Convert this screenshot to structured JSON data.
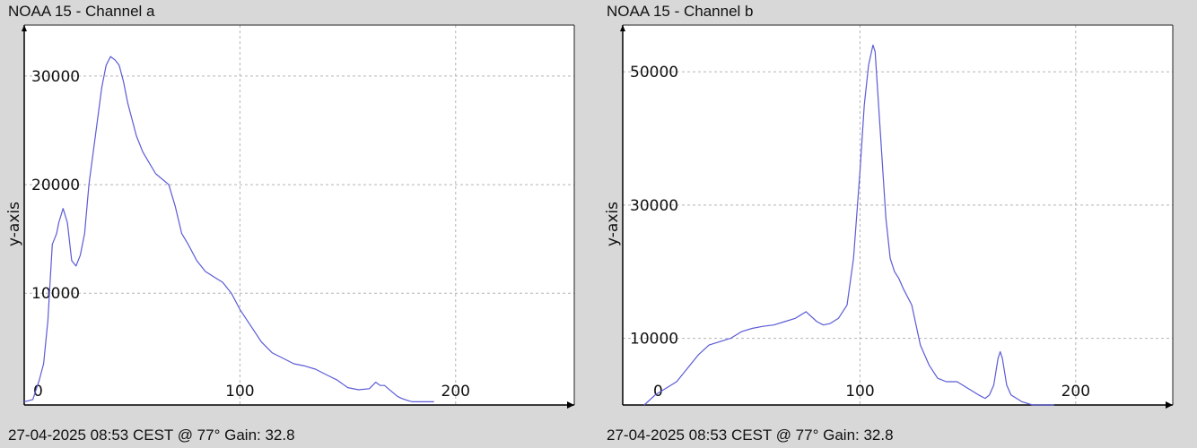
{
  "chart_data": [
    {
      "type": "line",
      "title": "NOAA 15 - Channel a",
      "footer": "27-04-2025 08:53 CEST @ 77° Gain: 32.8",
      "xlabel": "",
      "ylabel": "y-axis",
      "xlim": [
        0,
        255
      ],
      "ylim": [
        -300,
        34700
      ],
      "xticks": [
        0,
        100,
        200
      ],
      "yticks": [
        10000,
        20000,
        30000
      ],
      "grid": true,
      "line_color": "#5b5bd6",
      "series": [
        {
          "x": [
            0,
            4,
            7,
            9,
            11,
            12,
            13,
            14,
            15,
            16,
            18,
            20,
            22,
            24,
            26,
            28,
            30,
            33,
            36,
            38,
            40,
            42,
            44,
            46,
            48,
            50,
            52,
            55,
            58,
            61,
            64,
            67,
            70,
            73,
            76,
            80,
            84,
            88,
            92,
            96,
            100,
            105,
            110,
            115,
            120,
            125,
            130,
            135,
            140,
            145,
            150,
            155,
            160,
            163,
            165,
            167,
            170,
            173,
            175,
            178,
            180,
            185,
            190
          ],
          "y": [
            0,
            200,
            2000,
            3500,
            7500,
            11000,
            14500,
            15000,
            15500,
            16500,
            17800,
            16500,
            13000,
            12500,
            13500,
            15500,
            20000,
            24500,
            29000,
            31000,
            31800,
            31500,
            31000,
            29500,
            27500,
            26000,
            24500,
            23000,
            22000,
            21000,
            20500,
            20000,
            18000,
            15500,
            14500,
            13000,
            12000,
            11500,
            11000,
            10000,
            8500,
            7000,
            5500,
            4500,
            4000,
            3500,
            3300,
            3000,
            2500,
            2000,
            1300,
            1100,
            1200,
            1800,
            1500,
            1500,
            1000,
            500,
            300,
            100,
            0,
            0,
            0
          ]
        }
      ]
    },
    {
      "type": "line",
      "title": "NOAA 15 - Channel b",
      "footer": "27-04-2025 08:53 CEST @ 77° Gain: 32.8",
      "xlabel": "",
      "ylabel": "y-axis",
      "xlim": [
        -10,
        245
      ],
      "ylim": [
        0,
        57000
      ],
      "xticks": [
        0,
        100,
        200
      ],
      "yticks": [
        10000,
        30000,
        50000
      ],
      "grid": true,
      "line_color": "#5b5bd6",
      "series": [
        {
          "x": [
            0,
            5,
            10,
            15,
            20,
            25,
            30,
            35,
            40,
            45,
            50,
            55,
            60,
            65,
            70,
            75,
            80,
            83,
            86,
            90,
            94,
            97,
            100,
            102,
            104,
            106,
            107,
            108,
            110,
            112,
            114,
            116,
            118,
            120,
            124,
            128,
            132,
            136,
            140,
            145,
            150,
            155,
            158,
            160,
            162,
            164,
            165,
            166,
            168,
            170,
            175,
            180,
            185,
            190
          ],
          "y": [
            0,
            1500,
            2500,
            3500,
            5500,
            7500,
            9000,
            9500,
            10000,
            11000,
            11500,
            11800,
            12000,
            12500,
            13000,
            14000,
            12500,
            12000,
            12200,
            13000,
            15000,
            22000,
            35000,
            45000,
            51000,
            54000,
            53000,
            48000,
            38000,
            28000,
            22000,
            20000,
            19000,
            17500,
            15000,
            9000,
            6000,
            4000,
            3500,
            3500,
            2500,
            1500,
            1000,
            1500,
            3000,
            7000,
            8000,
            7000,
            3000,
            1500,
            500,
            0,
            0,
            0
          ]
        }
      ]
    }
  ]
}
